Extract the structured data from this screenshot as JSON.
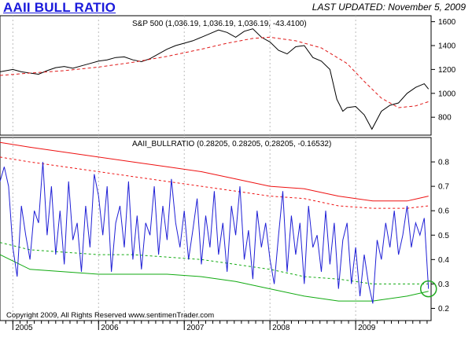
{
  "header": {
    "title": "AAII BULL RATIO",
    "updated_label": "LAST UPDATED:",
    "updated_date": "November 5, 2009"
  },
  "footer": {
    "copyright": "Copyright 2009, All Rights Reserved  www.sentimenTrader.com"
  },
  "colors": {
    "sp500": "#000000",
    "sp500_ma": "#e01818",
    "bull_ratio": "#1f1fd6",
    "upper_band": "#ee1111",
    "lower_band": "#11aa11",
    "circle": "#22aa22"
  },
  "chart_data": [
    {
      "type": "line",
      "label": "S&P 500 (1,036.19, 1,036.19, 1,036.19, -43.4100)",
      "ylim": [
        650,
        1650
      ],
      "yticks": [
        800,
        1000,
        1200,
        1400,
        1600
      ],
      "x_years": [
        "2005",
        "2006",
        "2007",
        "2008",
        "2009"
      ],
      "xlim": [
        2004.85,
        2009.88
      ],
      "series": [
        {
          "role": "price",
          "x": [
            2004.85,
            2005.0,
            2005.1,
            2005.2,
            2005.3,
            2005.4,
            2005.5,
            2005.6,
            2005.7,
            2005.8,
            2005.9,
            2006.0,
            2006.1,
            2006.2,
            2006.3,
            2006.4,
            2006.5,
            2006.6,
            2006.7,
            2006.8,
            2006.9,
            2007.0,
            2007.1,
            2007.2,
            2007.3,
            2007.4,
            2007.5,
            2007.6,
            2007.7,
            2007.8,
            2007.9,
            2008.0,
            2008.1,
            2008.2,
            2008.3,
            2008.4,
            2008.5,
            2008.6,
            2008.7,
            2008.78,
            2008.85,
            2008.9,
            2009.0,
            2009.1,
            2009.19,
            2009.3,
            2009.4,
            2009.5,
            2009.6,
            2009.7,
            2009.8,
            2009.85
          ],
          "values": [
            1180,
            1200,
            1180,
            1170,
            1160,
            1190,
            1215,
            1225,
            1210,
            1230,
            1250,
            1270,
            1280,
            1300,
            1305,
            1280,
            1265,
            1290,
            1330,
            1370,
            1400,
            1420,
            1440,
            1470,
            1500,
            1530,
            1510,
            1470,
            1520,
            1540,
            1470,
            1430,
            1360,
            1330,
            1390,
            1400,
            1300,
            1270,
            1200,
            950,
            850,
            880,
            890,
            820,
            700,
            850,
            900,
            920,
            1000,
            1050,
            1080,
            1036
          ]
        },
        {
          "role": "moving-average",
          "x": [
            2004.85,
            2005.2,
            2005.6,
            2006.0,
            2006.4,
            2006.8,
            2007.2,
            2007.5,
            2007.8,
            2008.0,
            2008.3,
            2008.6,
            2008.9,
            2009.1,
            2009.3,
            2009.5,
            2009.7,
            2009.85
          ],
          "values": [
            1150,
            1170,
            1190,
            1220,
            1260,
            1310,
            1370,
            1420,
            1460,
            1470,
            1440,
            1380,
            1250,
            1100,
            960,
            880,
            895,
            930
          ]
        }
      ]
    },
    {
      "type": "line",
      "label": "AAII_BULLRATIO (0.28205, 0.28205, 0.28205, -0.16532)",
      "ylim": [
        0.15,
        0.9
      ],
      "yticks": [
        0.2,
        0.3,
        0.4,
        0.5,
        0.6,
        0.7,
        0.8
      ],
      "xlim": [
        2004.85,
        2009.88
      ],
      "series": [
        {
          "role": "upper-band",
          "x": [
            2004.85,
            2005.2,
            2005.6,
            2006.0,
            2006.4,
            2006.8,
            2007.2,
            2007.6,
            2008.0,
            2008.4,
            2008.8,
            2009.2,
            2009.6,
            2009.85
          ],
          "values": [
            0.88,
            0.86,
            0.84,
            0.82,
            0.8,
            0.78,
            0.76,
            0.73,
            0.7,
            0.69,
            0.66,
            0.64,
            0.64,
            0.66
          ]
        },
        {
          "role": "upper-inner-band",
          "x": [
            2004.85,
            2005.2,
            2005.6,
            2006.0,
            2006.4,
            2006.8,
            2007.2,
            2007.6,
            2008.0,
            2008.4,
            2008.8,
            2009.2,
            2009.6,
            2009.85
          ],
          "values": [
            0.82,
            0.8,
            0.78,
            0.76,
            0.74,
            0.72,
            0.7,
            0.68,
            0.66,
            0.65,
            0.62,
            0.61,
            0.61,
            0.62
          ]
        },
        {
          "role": "lower-inner-band",
          "x": [
            2004.85,
            2005.2,
            2005.6,
            2006.0,
            2006.4,
            2006.8,
            2007.2,
            2007.6,
            2008.0,
            2008.4,
            2008.8,
            2009.2,
            2009.6,
            2009.85
          ],
          "values": [
            0.47,
            0.44,
            0.43,
            0.42,
            0.42,
            0.41,
            0.4,
            0.38,
            0.36,
            0.33,
            0.32,
            0.3,
            0.3,
            0.3
          ]
        },
        {
          "role": "lower-band",
          "x": [
            2004.85,
            2005.2,
            2005.6,
            2006.0,
            2006.4,
            2006.8,
            2007.2,
            2007.6,
            2008.0,
            2008.4,
            2008.8,
            2009.2,
            2009.6,
            2009.85
          ],
          "values": [
            0.42,
            0.36,
            0.35,
            0.34,
            0.34,
            0.34,
            0.33,
            0.31,
            0.28,
            0.25,
            0.23,
            0.23,
            0.25,
            0.27
          ]
        },
        {
          "role": "bull-ratio",
          "x": [
            2004.85,
            2004.9,
            2004.95,
            2005.0,
            2005.05,
            2005.1,
            2005.15,
            2005.2,
            2005.25,
            2005.3,
            2005.35,
            2005.4,
            2005.45,
            2005.5,
            2005.55,
            2005.6,
            2005.65,
            2005.7,
            2005.75,
            2005.8,
            2005.85,
            2005.9,
            2005.95,
            2006.0,
            2006.05,
            2006.1,
            2006.15,
            2006.2,
            2006.25,
            2006.3,
            2006.35,
            2006.4,
            2006.45,
            2006.5,
            2006.55,
            2006.6,
            2006.65,
            2006.7,
            2006.75,
            2006.8,
            2006.85,
            2006.9,
            2006.95,
            2007.0,
            2007.05,
            2007.1,
            2007.15,
            2007.2,
            2007.25,
            2007.3,
            2007.35,
            2007.4,
            2007.45,
            2007.5,
            2007.55,
            2007.6,
            2007.65,
            2007.7,
            2007.75,
            2007.8,
            2007.85,
            2007.9,
            2007.95,
            2008.0,
            2008.05,
            2008.1,
            2008.15,
            2008.2,
            2008.25,
            2008.3,
            2008.35,
            2008.4,
            2008.45,
            2008.5,
            2008.55,
            2008.6,
            2008.65,
            2008.7,
            2008.75,
            2008.8,
            2008.85,
            2008.9,
            2008.95,
            2009.0,
            2009.05,
            2009.1,
            2009.15,
            2009.2,
            2009.25,
            2009.3,
            2009.35,
            2009.4,
            2009.45,
            2009.5,
            2009.55,
            2009.6,
            2009.65,
            2009.7,
            2009.75,
            2009.8,
            2009.85
          ],
          "values": [
            0.72,
            0.78,
            0.7,
            0.45,
            0.33,
            0.62,
            0.5,
            0.4,
            0.6,
            0.55,
            0.8,
            0.5,
            0.7,
            0.42,
            0.6,
            0.38,
            0.72,
            0.48,
            0.55,
            0.35,
            0.62,
            0.45,
            0.75,
            0.66,
            0.5,
            0.7,
            0.35,
            0.55,
            0.62,
            0.45,
            0.72,
            0.4,
            0.58,
            0.36,
            0.55,
            0.5,
            0.7,
            0.42,
            0.62,
            0.48,
            0.73,
            0.55,
            0.45,
            0.6,
            0.4,
            0.52,
            0.65,
            0.38,
            0.58,
            0.45,
            0.68,
            0.42,
            0.55,
            0.35,
            0.62,
            0.5,
            0.7,
            0.4,
            0.52,
            0.32,
            0.6,
            0.45,
            0.55,
            0.4,
            0.3,
            0.5,
            0.68,
            0.35,
            0.58,
            0.42,
            0.55,
            0.3,
            0.62,
            0.45,
            0.5,
            0.35,
            0.6,
            0.38,
            0.55,
            0.28,
            0.48,
            0.55,
            0.3,
            0.45,
            0.25,
            0.42,
            0.3,
            0.22,
            0.48,
            0.4,
            0.55,
            0.45,
            0.6,
            0.42,
            0.5,
            0.62,
            0.45,
            0.55,
            0.5,
            0.57,
            0.28
          ]
        }
      ]
    }
  ]
}
